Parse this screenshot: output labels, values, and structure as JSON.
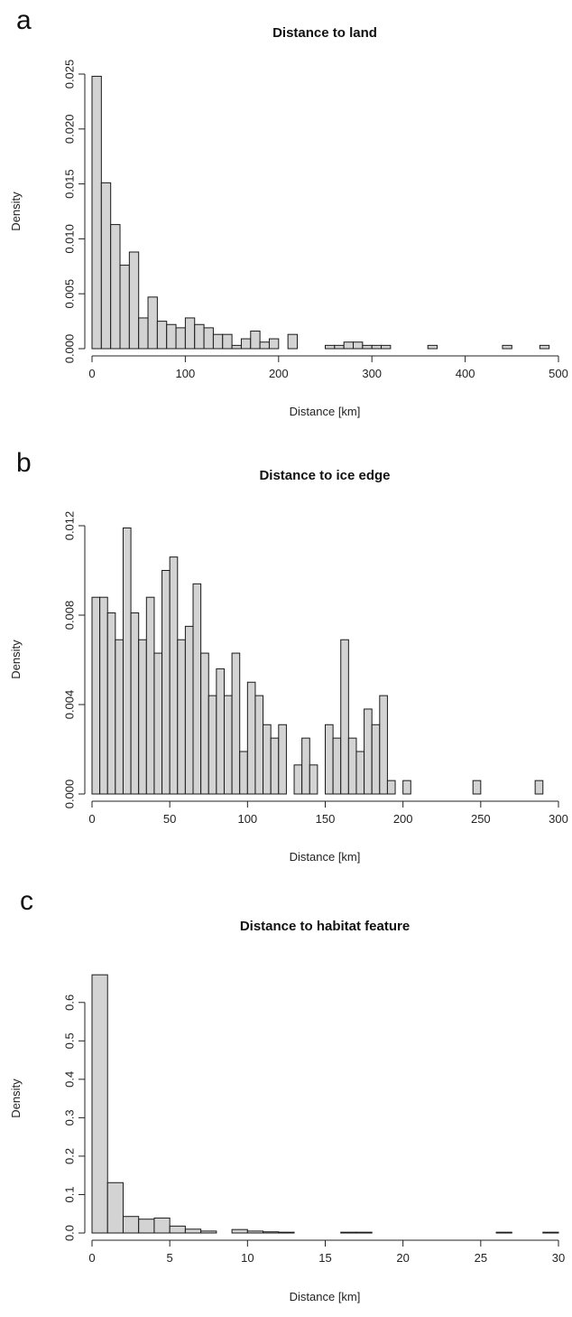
{
  "chart_data": [
    {
      "type": "bar",
      "panel_letter": "a",
      "title": "Distance to land",
      "xlabel": "Distance [km]",
      "ylabel": "Density",
      "xlim": [
        0,
        500
      ],
      "ylim": [
        0,
        0.025
      ],
      "x_ticks": [
        0,
        100,
        200,
        300,
        400,
        500
      ],
      "y_ticks": [
        0.0,
        0.005,
        0.01,
        0.015,
        0.02,
        0.025
      ],
      "x_tick_labels": [
        "0",
        "100",
        "200",
        "300",
        "400",
        "500"
      ],
      "y_tick_labels": [
        "0.000",
        "0.005",
        "0.010",
        "0.015",
        "0.020",
        "0.025"
      ],
      "bin_width": 10,
      "bin_start": 0,
      "values": [
        0.0248,
        0.0151,
        0.0113,
        0.0076,
        0.0088,
        0.0028,
        0.0047,
        0.0025,
        0.0022,
        0.0019,
        0.0028,
        0.0022,
        0.0019,
        0.0013,
        0.0013,
        0.0003,
        0.0009,
        0.0016,
        0.0006,
        0.0009,
        0,
        0.0013,
        0,
        0,
        0,
        0.0003,
        0.0003,
        0.0006,
        0.0006,
        0.0003,
        0.0003,
        0.0003,
        0,
        0,
        0,
        0,
        0.0003,
        0,
        0,
        0,
        0,
        0,
        0,
        0,
        0.0003,
        0,
        0,
        0,
        0.0003
      ]
    },
    {
      "type": "bar",
      "panel_letter": "b",
      "title": "Distance to ice edge",
      "xlabel": "Distance [km]",
      "ylabel": "Density",
      "xlim": [
        0,
        300
      ],
      "ylim": [
        0,
        0.012
      ],
      "x_ticks": [
        0,
        50,
        100,
        150,
        200,
        250,
        300
      ],
      "y_ticks": [
        0.0,
        0.004,
        0.008,
        0.012
      ],
      "x_tick_labels": [
        "0",
        "50",
        "100",
        "150",
        "200",
        "250",
        "300"
      ],
      "y_tick_labels": [
        "0.000",
        "0.004",
        "0.008",
        "0.012"
      ],
      "bin_width": 5,
      "bin_start": 0,
      "values": [
        0.0088,
        0.0088,
        0.0081,
        0.0069,
        0.0119,
        0.0081,
        0.0069,
        0.0088,
        0.0063,
        0.01,
        0.0106,
        0.0069,
        0.0075,
        0.0094,
        0.0063,
        0.0044,
        0.0056,
        0.0044,
        0.0063,
        0.0019,
        0.005,
        0.0044,
        0.0031,
        0.0025,
        0.0031,
        0,
        0.0013,
        0.0025,
        0.0013,
        0,
        0.0031,
        0.0025,
        0.0069,
        0.0025,
        0.0019,
        0.0038,
        0.0031,
        0.0044,
        0.0006,
        0,
        0.0006,
        0,
        0,
        0,
        0,
        0,
        0,
        0,
        0,
        0.0006,
        0,
        0,
        0,
        0,
        0,
        0,
        0,
        0.0006
      ]
    },
    {
      "type": "bar",
      "panel_letter": "c",
      "title": "Distance to habitat feature",
      "xlabel": "Distance [km]",
      "ylabel": "Density",
      "xlim": [
        0,
        30
      ],
      "ylim": [
        0,
        0.67
      ],
      "x_ticks": [
        0,
        5,
        10,
        15,
        20,
        25,
        30
      ],
      "y_ticks": [
        0.0,
        0.1,
        0.2,
        0.3,
        0.4,
        0.5,
        0.6
      ],
      "x_tick_labels": [
        "0",
        "5",
        "10",
        "15",
        "20",
        "25",
        "30"
      ],
      "y_tick_labels": [
        "0.0",
        "0.1",
        "0.2",
        "0.3",
        "0.4",
        "0.5",
        "0.6"
      ],
      "bin_width": 1,
      "bin_start": 0,
      "values": [
        0.672,
        0.131,
        0.043,
        0.036,
        0.039,
        0.018,
        0.01,
        0.005,
        0,
        0.009,
        0.005,
        0.003,
        0.002,
        0,
        0,
        0,
        0.002,
        0.002,
        0,
        0,
        0,
        0,
        0,
        0,
        0,
        0,
        0.002,
        0,
        0,
        0.002
      ]
    }
  ]
}
